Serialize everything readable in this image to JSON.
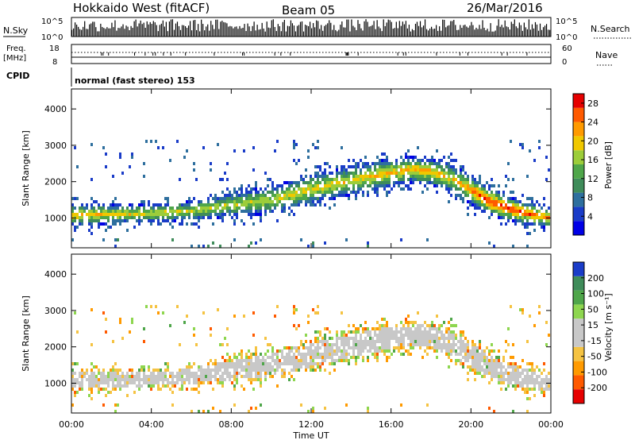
{
  "header": {
    "radar": "Hokkaido West (fitACF)",
    "beam": "Beam 05",
    "date": "26/Mar/2016"
  },
  "params": {
    "nsky_label": "N.Sky",
    "nsky_ticks": [
      "10^5",
      "10^0"
    ],
    "nsearch_label": "N.Search",
    "freq_label_1": "Freq.",
    "freq_label_2": "[MHz]",
    "freq_ticks": [
      "18",
      "8"
    ],
    "nave_label": "Nave",
    "nave_ticks": [
      "60",
      "0"
    ],
    "cpid_label": "CPID",
    "cpid_value": "normal (fast stereo) 153"
  },
  "colors": {
    "power": [
      "#0000e6",
      "#1a3cc8",
      "#2e6f9e",
      "#3f8c5a",
      "#4fa64a",
      "#9ccd3a",
      "#f0c800",
      "#ff9a00",
      "#ff5a00",
      "#e60000"
    ],
    "velocity": [
      "#e60000",
      "#ff5a00",
      "#ff9a00",
      "#f5c342",
      "#c8c8c8",
      "#c8c8c8",
      "#8ed64f",
      "#4fa64a",
      "#3f8c5a",
      "#1a3cc8"
    ],
    "ground_scatter": "#c8c8c8"
  },
  "chart_data": [
    {
      "type": "heatmap",
      "panel": "power",
      "ylabel": "Slant Range [km]",
      "ylim": [
        180,
        4550
      ],
      "yticks": [
        1000,
        2000,
        3000,
        4000
      ],
      "xlim_hours": [
        0,
        24
      ],
      "colorbar": {
        "label": "Power [dB]",
        "ticks": [
          4,
          8,
          12,
          16,
          20,
          24,
          28
        ],
        "range": [
          0,
          30
        ]
      },
      "scatter_band": {
        "time_hours": [
          0,
          2,
          4,
          6,
          8,
          10,
          12,
          14,
          16,
          17,
          18,
          19,
          20,
          21,
          22,
          23,
          24
        ],
        "center_km": [
          1080,
          1100,
          1120,
          1200,
          1350,
          1500,
          1780,
          2020,
          2250,
          2330,
          2280,
          2100,
          1780,
          1450,
          1250,
          1100,
          1000
        ],
        "half_width_km": [
          300,
          260,
          240,
          260,
          320,
          380,
          400,
          400,
          380,
          360,
          360,
          380,
          400,
          380,
          330,
          300,
          280
        ],
        "peak_power_db": [
          22,
          20,
          20,
          18,
          18,
          18,
          20,
          20,
          22,
          22,
          22,
          20,
          24,
          28,
          28,
          26,
          24
        ]
      }
    },
    {
      "type": "heatmap",
      "panel": "velocity",
      "ylabel": "Slant Range [km]",
      "ylim": [
        180,
        4550
      ],
      "yticks": [
        1000,
        2000,
        3000,
        4000
      ],
      "xlabel": "Time UT",
      "xticks": [
        "00:00",
        "04:00",
        "08:00",
        "12:00",
        "16:00",
        "20:00",
        "00:00"
      ],
      "colorbar": {
        "label": "Velocity [m s⁻¹]",
        "ticks": [
          -200,
          -100,
          -50,
          -15,
          15,
          50,
          100,
          200
        ],
        "range": [
          -250,
          250
        ]
      },
      "dominant": "ground scatter (grey), scattered -50..-15 m/s near 04:00-11:00 and 20:00 bands"
    }
  ]
}
